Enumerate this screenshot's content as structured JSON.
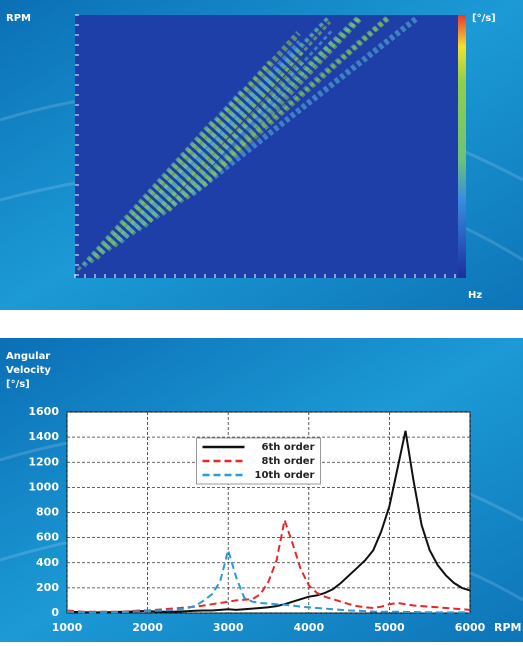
{
  "chart_data": [
    {
      "type": "heatmap",
      "y_label": "RPM",
      "x_label": "Hz",
      "colorbar_label": "[°/s]"
    },
    {
      "type": "line",
      "y_label": [
        "Angular",
        "Velocity",
        "[°/s]"
      ],
      "x_label": "RPM",
      "x": [
        1000,
        1100,
        1200,
        1300,
        1400,
        1500,
        1600,
        1700,
        1800,
        1900,
        2000,
        2100,
        2200,
        2300,
        2400,
        2500,
        2600,
        2700,
        2800,
        2900,
        3000,
        3100,
        3200,
        3300,
        3400,
        3500,
        3600,
        3700,
        3800,
        3900,
        4000,
        4100,
        4200,
        4300,
        4400,
        4500,
        4600,
        4700,
        4800,
        4900,
        5000,
        5100,
        5200,
        5300,
        5400,
        5500,
        5600,
        5700,
        5800,
        5900,
        6000
      ],
      "series": [
        {
          "name": "6th order",
          "color": "#111111",
          "linestyle": "solid",
          "values": [
            10,
            8,
            6,
            5,
            5,
            6,
            8,
            10,
            12,
            15,
            15,
            12,
            10,
            10,
            12,
            15,
            18,
            20,
            20,
            25,
            30,
            25,
            30,
            35,
            40,
            45,
            55,
            70,
            90,
            110,
            130,
            140,
            160,
            190,
            240,
            300,
            360,
            420,
            500,
            650,
            850,
            1150,
            1450,
            1050,
            700,
            500,
            380,
            300,
            240,
            200,
            180
          ]
        },
        {
          "name": "8th order",
          "color": "#e8282a",
          "linestyle": "dashed",
          "values": [
            20,
            15,
            10,
            10,
            10,
            10,
            10,
            10,
            15,
            20,
            20,
            25,
            30,
            35,
            40,
            45,
            50,
            60,
            70,
            80,
            90,
            100,
            105,
            110,
            150,
            250,
            420,
            740,
            550,
            350,
            220,
            160,
            130,
            110,
            90,
            70,
            55,
            45,
            40,
            50,
            70,
            80,
            70,
            60,
            55,
            50,
            45,
            40,
            35,
            30,
            25
          ]
        },
        {
          "name": "10th order",
          "color": "#2a9ad8",
          "linestyle": "dashed",
          "values": [
            10,
            8,
            6,
            5,
            5,
            5,
            6,
            8,
            10,
            12,
            15,
            18,
            20,
            25,
            30,
            40,
            60,
            100,
            150,
            250,
            500,
            280,
            120,
            90,
            80,
            75,
            70,
            65,
            60,
            50,
            45,
            40,
            35,
            30,
            25,
            20,
            18,
            15,
            12,
            10,
            10,
            10,
            8,
            8,
            6,
            6,
            5,
            5,
            5,
            5,
            5
          ]
        }
      ],
      "xlim": [
        1000,
        6000
      ],
      "xticks": [
        1000,
        2000,
        3000,
        4000,
        5000,
        6000
      ],
      "ylim": [
        0,
        1600
      ],
      "yticks": [
        0,
        200,
        400,
        600,
        800,
        1000,
        1200,
        1400,
        1600
      ],
      "grid": true,
      "legend": "top-center"
    }
  ]
}
